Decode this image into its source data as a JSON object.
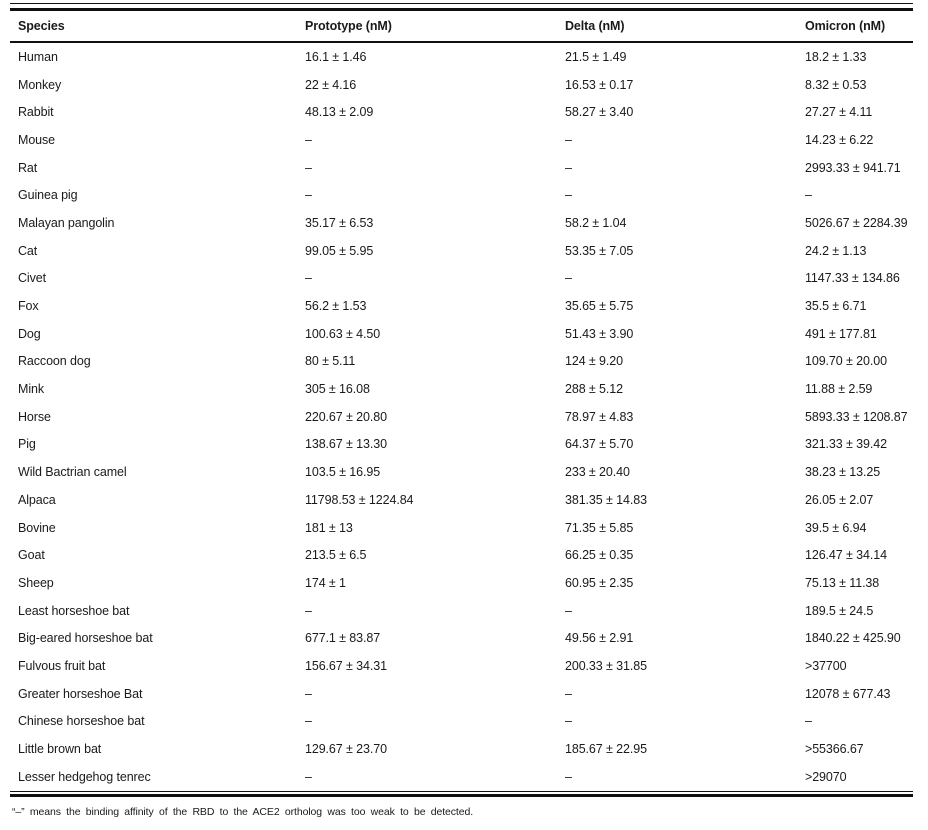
{
  "colors": {
    "background": "#ffffff",
    "text": "#1a1a1a",
    "rule": "#111111"
  },
  "table": {
    "columns": [
      "Species",
      "Prototype (nM)",
      "Delta (nM)",
      "Omicron (nM)"
    ],
    "missing_value_symbol": "–",
    "rows": [
      [
        "Human",
        "16.1 ± 1.46",
        "21.5 ± 1.49",
        "18.2 ± 1.33"
      ],
      [
        "Monkey",
        "22 ± 4.16",
        "16.53 ± 0.17",
        "8.32 ± 0.53"
      ],
      [
        "Rabbit",
        "48.13 ± 2.09",
        "58.27 ± 3.40",
        "27.27 ± 4.11"
      ],
      [
        "Mouse",
        "–",
        "–",
        "14.23 ± 6.22"
      ],
      [
        "Rat",
        "–",
        "–",
        "2993.33 ± 941.71"
      ],
      [
        "Guinea pig",
        "–",
        "–",
        "–"
      ],
      [
        "Malayan pangolin",
        "35.17 ± 6.53",
        "58.2 ± 1.04",
        "5026.67 ± 2284.39"
      ],
      [
        "Cat",
        "99.05 ± 5.95",
        "53.35 ± 7.05",
        "24.2 ± 1.13"
      ],
      [
        "Civet",
        "–",
        "–",
        "1147.33 ± 134.86"
      ],
      [
        "Fox",
        "56.2 ± 1.53",
        "35.65 ± 5.75",
        "35.5 ± 6.71"
      ],
      [
        "Dog",
        "100.63 ± 4.50",
        "51.43 ± 3.90",
        "491 ± 177.81"
      ],
      [
        "Raccoon dog",
        "80 ± 5.11",
        "124 ± 9.20",
        "109.70 ± 20.00"
      ],
      [
        "Mink",
        "305 ± 16.08",
        "288 ± 5.12",
        "11.88 ± 2.59"
      ],
      [
        "Horse",
        "220.67 ± 20.80",
        "78.97 ± 4.83",
        "5893.33 ± 1208.87"
      ],
      [
        "Pig",
        "138.67 ± 13.30",
        "64.37 ± 5.70",
        "321.33 ± 39.42"
      ],
      [
        "Wild Bactrian camel",
        "103.5 ± 16.95",
        "233 ± 20.40",
        "38.23 ± 13.25"
      ],
      [
        "Alpaca",
        "11798.53 ± 1224.84",
        "381.35 ± 14.83",
        "26.05 ± 2.07"
      ],
      [
        "Bovine",
        "181 ± 13",
        "71.35 ± 5.85",
        "39.5 ± 6.94"
      ],
      [
        "Goat",
        "213.5 ± 6.5",
        "66.25 ± 0.35",
        "126.47 ± 34.14"
      ],
      [
        "Sheep",
        "174 ± 1",
        "60.95 ± 2.35",
        "75.13 ± 11.38"
      ],
      [
        "Least horseshoe bat",
        "–",
        "–",
        "189.5 ± 24.5"
      ],
      [
        "Big-eared horseshoe bat",
        "677.1 ± 83.87",
        "49.56 ± 2.91",
        "1840.22 ± 425.90"
      ],
      [
        "Fulvous fruit bat",
        "156.67 ± 34.31",
        "200.33 ± 31.85",
        "&gt;37700"
      ],
      [
        "Greater horseshoe Bat",
        "–",
        "–",
        "12078 ± 677.43"
      ],
      [
        "Chinese horseshoe bat",
        "–",
        "–",
        "–"
      ],
      [
        "Little brown bat",
        "129.67 ± 23.70",
        "185.67 ± 22.95",
        "&gt;55366.67"
      ],
      [
        "Lesser hedgehog tenrec",
        "–",
        "–",
        "&gt;29070"
      ]
    ],
    "footnote": "“–” means the binding affinity of the RBD to the ACE2 ortholog was too weak to be detected."
  }
}
